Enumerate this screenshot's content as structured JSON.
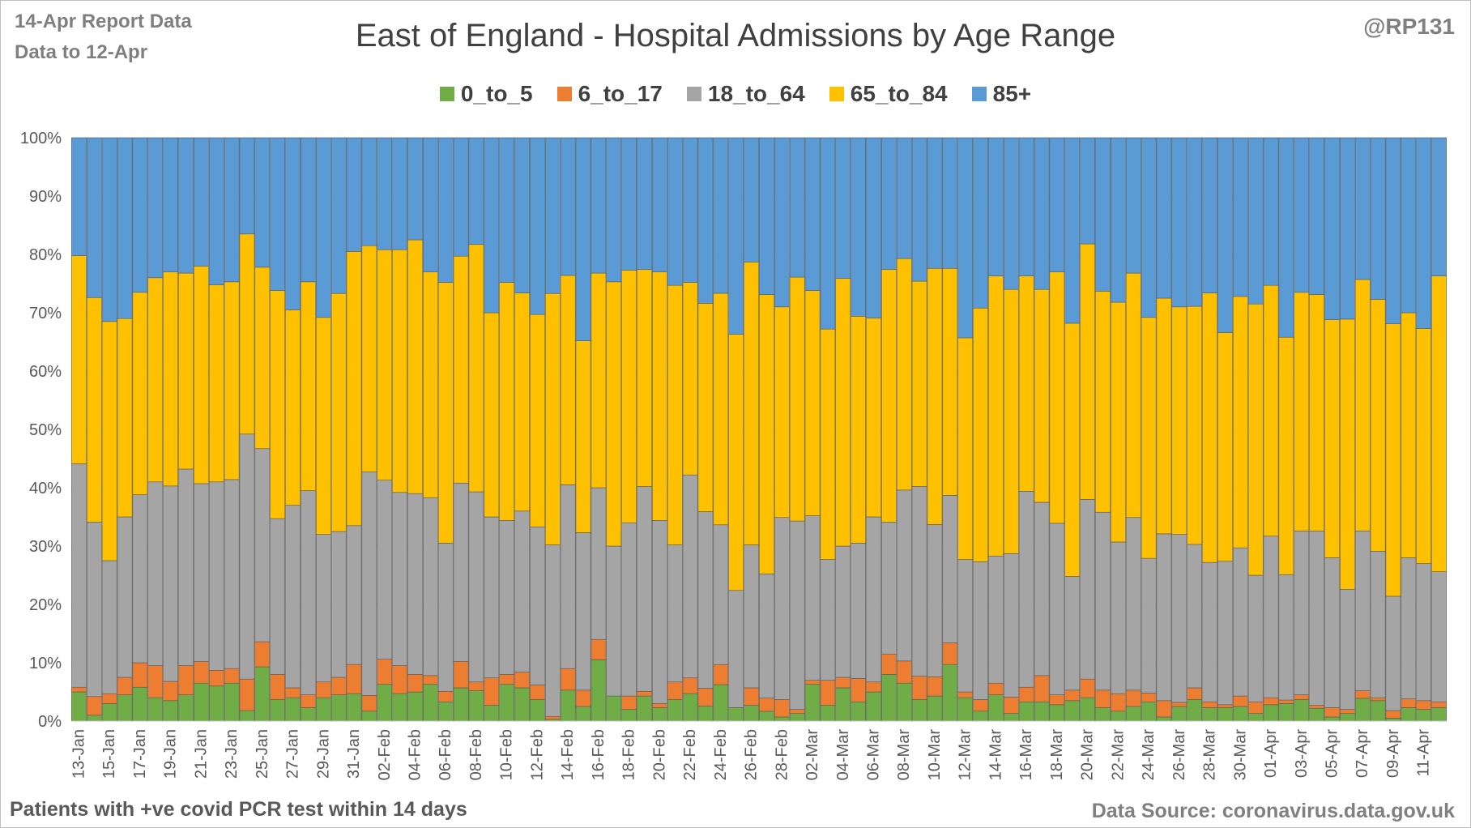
{
  "header": {
    "report_line1": "14-Apr Report Data",
    "report_line2": "Data to 12-Apr",
    "handle": "@RP131"
  },
  "footer": {
    "note": "Patients with  +ve covid PCR test within 14 days",
    "source": "Data Source: coronavirus.data.gov.uk"
  },
  "chart_data": {
    "type": "bar",
    "stacked": true,
    "percent_stacked": true,
    "title": "East of England - Hospital Admissions by Age Range",
    "xlabel": "",
    "ylabel": "",
    "ylim": [
      0,
      100
    ],
    "y_ticks": [
      "0%",
      "10%",
      "20%",
      "30%",
      "40%",
      "50%",
      "60%",
      "70%",
      "80%",
      "90%",
      "100%"
    ],
    "legend_position": "top",
    "grid": true,
    "x_tick_labels": [
      "13-Jan",
      "15-Jan",
      "17-Jan",
      "19-Jan",
      "21-Jan",
      "23-Jan",
      "25-Jan",
      "27-Jan",
      "29-Jan",
      "31-Jan",
      "02-Feb",
      "04-Feb",
      "06-Feb",
      "08-Feb",
      "10-Feb",
      "12-Feb",
      "14-Feb",
      "16-Feb",
      "18-Feb",
      "20-Feb",
      "22-Feb",
      "24-Feb",
      "26-Feb",
      "28-Feb",
      "02-Mar",
      "04-Mar",
      "06-Mar",
      "08-Mar",
      "10-Mar",
      "12-Mar",
      "14-Mar",
      "16-Mar",
      "18-Mar",
      "20-Mar",
      "22-Mar",
      "24-Mar",
      "26-Mar",
      "28-Mar",
      "30-Mar",
      "01-Apr",
      "03-Apr",
      "05-Apr",
      "07-Apr",
      "09-Apr",
      "11-Apr"
    ],
    "categories": [
      "13-Jan",
      "14-Jan",
      "15-Jan",
      "16-Jan",
      "17-Jan",
      "18-Jan",
      "19-Jan",
      "20-Jan",
      "21-Jan",
      "22-Jan",
      "23-Jan",
      "24-Jan",
      "25-Jan",
      "26-Jan",
      "27-Jan",
      "28-Jan",
      "29-Jan",
      "30-Jan",
      "31-Jan",
      "01-Feb",
      "02-Feb",
      "03-Feb",
      "04-Feb",
      "05-Feb",
      "06-Feb",
      "07-Feb",
      "08-Feb",
      "09-Feb",
      "10-Feb",
      "11-Feb",
      "12-Feb",
      "13-Feb",
      "14-Feb",
      "15-Feb",
      "16-Feb",
      "17-Feb",
      "18-Feb",
      "19-Feb",
      "20-Feb",
      "21-Feb",
      "22-Feb",
      "23-Feb",
      "24-Feb",
      "25-Feb",
      "26-Feb",
      "27-Feb",
      "28-Feb",
      "01-Mar",
      "02-Mar",
      "03-Mar",
      "04-Mar",
      "05-Mar",
      "06-Mar",
      "07-Mar",
      "08-Mar",
      "09-Mar",
      "10-Mar",
      "11-Mar",
      "12-Mar",
      "13-Mar",
      "14-Mar",
      "15-Mar",
      "16-Mar",
      "17-Mar",
      "18-Mar",
      "19-Mar",
      "20-Mar",
      "21-Mar",
      "22-Mar",
      "23-Mar",
      "24-Mar",
      "25-Mar",
      "26-Mar",
      "27-Mar",
      "28-Mar",
      "29-Mar",
      "30-Mar",
      "31-Mar",
      "01-Apr",
      "02-Apr",
      "03-Apr",
      "04-Apr",
      "05-Apr",
      "06-Apr",
      "07-Apr",
      "08-Apr",
      "09-Apr",
      "10-Apr",
      "11-Apr",
      "12-Apr"
    ],
    "series": [
      {
        "name": "0_to_5",
        "color": "#70ad47",
        "values": [
          5.0,
          1.0,
          3.0,
          4.5,
          5.8,
          4.0,
          3.5,
          4.5,
          6.5,
          6.0,
          6.5,
          1.8,
          9.3,
          3.7,
          4.0,
          2.3,
          4.0,
          4.5,
          4.7,
          1.7,
          6.3,
          4.7,
          5.0,
          6.3,
          3.3,
          5.7,
          5.2,
          2.7,
          6.3,
          5.7,
          3.7,
          0.3,
          5.3,
          2.5,
          10.5,
          4.3,
          2.0,
          4.3,
          2.3,
          3.7,
          4.7,
          2.7,
          6.0,
          2.3,
          2.7,
          1.7,
          0.7,
          1.3,
          6.3,
          2.7,
          5.7,
          3.3,
          5.0,
          8.0,
          6.5,
          3.7,
          4.3,
          9.7,
          4.0,
          1.7,
          4.5,
          1.3,
          3.3,
          3.3,
          2.8,
          3.5,
          4.0,
          2.3,
          1.7,
          2.5,
          3.3,
          0.7,
          2.5,
          3.7,
          2.3,
          2.3,
          2.5,
          1.3,
          2.8,
          3.0,
          3.7,
          2.2,
          0.7,
          1.3,
          3.9,
          3.5,
          0.5,
          2.3,
          2.0,
          2.3
        ]
      },
      {
        "name": "6_to_17",
        "color": "#ed7d31",
        "values": [
          0.8,
          3.2,
          1.7,
          3.0,
          4.2,
          5.5,
          3.3,
          5.0,
          3.7,
          2.7,
          2.5,
          5.4,
          4.3,
          4.3,
          1.7,
          2.2,
          2.7,
          3.0,
          5.0,
          2.7,
          4.3,
          4.8,
          3.0,
          1.5,
          1.8,
          4.5,
          1.5,
          4.7,
          1.7,
          2.7,
          2.5,
          0.5,
          3.7,
          2.8,
          3.5,
          0.0,
          2.3,
          0.8,
          0.7,
          3.0,
          2.7,
          3.2,
          3.3,
          0.0,
          3.0,
          2.3,
          3.0,
          0.7,
          0.7,
          4.3,
          1.8,
          4.0,
          1.7,
          3.5,
          3.8,
          4.0,
          3.3,
          3.7,
          1.0,
          2.0,
          2.0,
          2.8,
          2.5,
          4.5,
          1.7,
          1.8,
          3.2,
          3.0,
          3.0,
          2.8,
          1.5,
          2.8,
          0.7,
          2.0,
          1.0,
          0.5,
          1.8,
          2.0,
          1.2,
          0.6,
          0.8,
          0.5,
          1.6,
          0.7,
          1.3,
          0.5,
          1.3,
          1.5,
          1.5,
          1.0
        ]
      },
      {
        "name": "18_to_64",
        "color": "#a5a5a5",
        "values": [
          38.3,
          29.9,
          22.8,
          27.5,
          28.8,
          31.5,
          33.5,
          33.7,
          30.5,
          32.3,
          32.4,
          42.0,
          33.1,
          26.7,
          31.3,
          35.0,
          25.3,
          25.0,
          23.8,
          38.3,
          30.7,
          29.7,
          31.0,
          30.5,
          25.4,
          30.6,
          32.6,
          27.6,
          26.4,
          27.6,
          27.1,
          29.4,
          31.5,
          27.0,
          26.0,
          25.7,
          29.7,
          35.1,
          31.4,
          23.5,
          34.8,
          31.8,
          23.0,
          20.1,
          24.5,
          21.6,
          31.2,
          32.3,
          28.2,
          20.7,
          22.5,
          23.2,
          28.3,
          22.6,
          29.3,
          32.5,
          26.1,
          25.3,
          22.7,
          23.6,
          21.8,
          24.6,
          33.6,
          29.7,
          29.4,
          19.5,
          30.8,
          30.5,
          26.0,
          29.6,
          23.1,
          28.6,
          28.8,
          24.6,
          23.9,
          24.6,
          25.4,
          21.7,
          27.7,
          21.5,
          28.1,
          29.9,
          25.7,
          20.6,
          27.4,
          25.1,
          19.6,
          24.2,
          23.5,
          22.3
        ]
      },
      {
        "name": "65_to_84",
        "color": "#ffc000",
        "values": [
          35.7,
          38.5,
          41.0,
          34.0,
          34.7,
          35.0,
          36.7,
          33.6,
          37.3,
          33.8,
          33.9,
          34.3,
          31.1,
          39.1,
          33.5,
          35.8,
          37.2,
          40.8,
          47.0,
          38.8,
          39.5,
          41.6,
          43.5,
          38.7,
          44.7,
          38.9,
          42.4,
          35.0,
          40.8,
          37.4,
          36.4,
          43.1,
          35.9,
          32.9,
          36.8,
          45.3,
          43.3,
          37.2,
          42.6,
          44.5,
          33.0,
          37.5,
          38.1,
          43.9,
          48.5,
          48.6,
          36.1,
          41.8,
          38.6,
          39.5,
          45.9,
          38.9,
          34.1,
          43.3,
          39.7,
          35.2,
          43.9,
          38.9,
          38.0,
          43.5,
          48.0,
          45.3,
          36.9,
          36.5,
          43.1,
          43.4,
          43.8,
          37.9,
          41.1,
          41.9,
          41.3,
          40.4,
          39.0,
          40.8,
          46.2,
          39.2,
          43.1,
          46.5,
          43.0,
          40.7,
          40.9,
          40.5,
          40.8,
          46.3,
          43.1,
          43.2,
          46.7,
          42.0,
          40.3,
          50.7
        ]
      },
      {
        "name": "85+",
        "color": "#5b9bd5",
        "values": [
          20.2,
          27.4,
          31.5,
          31.0,
          26.5,
          24.0,
          23.0,
          23.2,
          22.0,
          25.2,
          24.7,
          16.5,
          22.2,
          26.2,
          29.5,
          24.7,
          30.8,
          26.7,
          19.5,
          18.5,
          19.2,
          19.2,
          17.5,
          23.0,
          24.8,
          20.3,
          18.3,
          30.0,
          24.8,
          26.6,
          30.3,
          26.7,
          23.6,
          34.8,
          23.2,
          24.7,
          22.7,
          22.6,
          23.0,
          25.3,
          24.8,
          29.8,
          25.6,
          33.7,
          21.3,
          27.3,
          29.0,
          23.9,
          26.2,
          32.8,
          24.1,
          30.6,
          30.9,
          22.6,
          20.7,
          24.6,
          22.4,
          22.4,
          34.3,
          29.2,
          23.7,
          26.0,
          23.7,
          26.0,
          23.0,
          31.8,
          18.2,
          26.3,
          28.2,
          23.2,
          30.8,
          27.5,
          29.0,
          28.9,
          26.6,
          33.4,
          27.2,
          28.5,
          25.3,
          34.2,
          26.5,
          26.9,
          31.2,
          31.1,
          24.3,
          27.7,
          31.9,
          30.0,
          32.7,
          23.7
        ]
      }
    ]
  }
}
